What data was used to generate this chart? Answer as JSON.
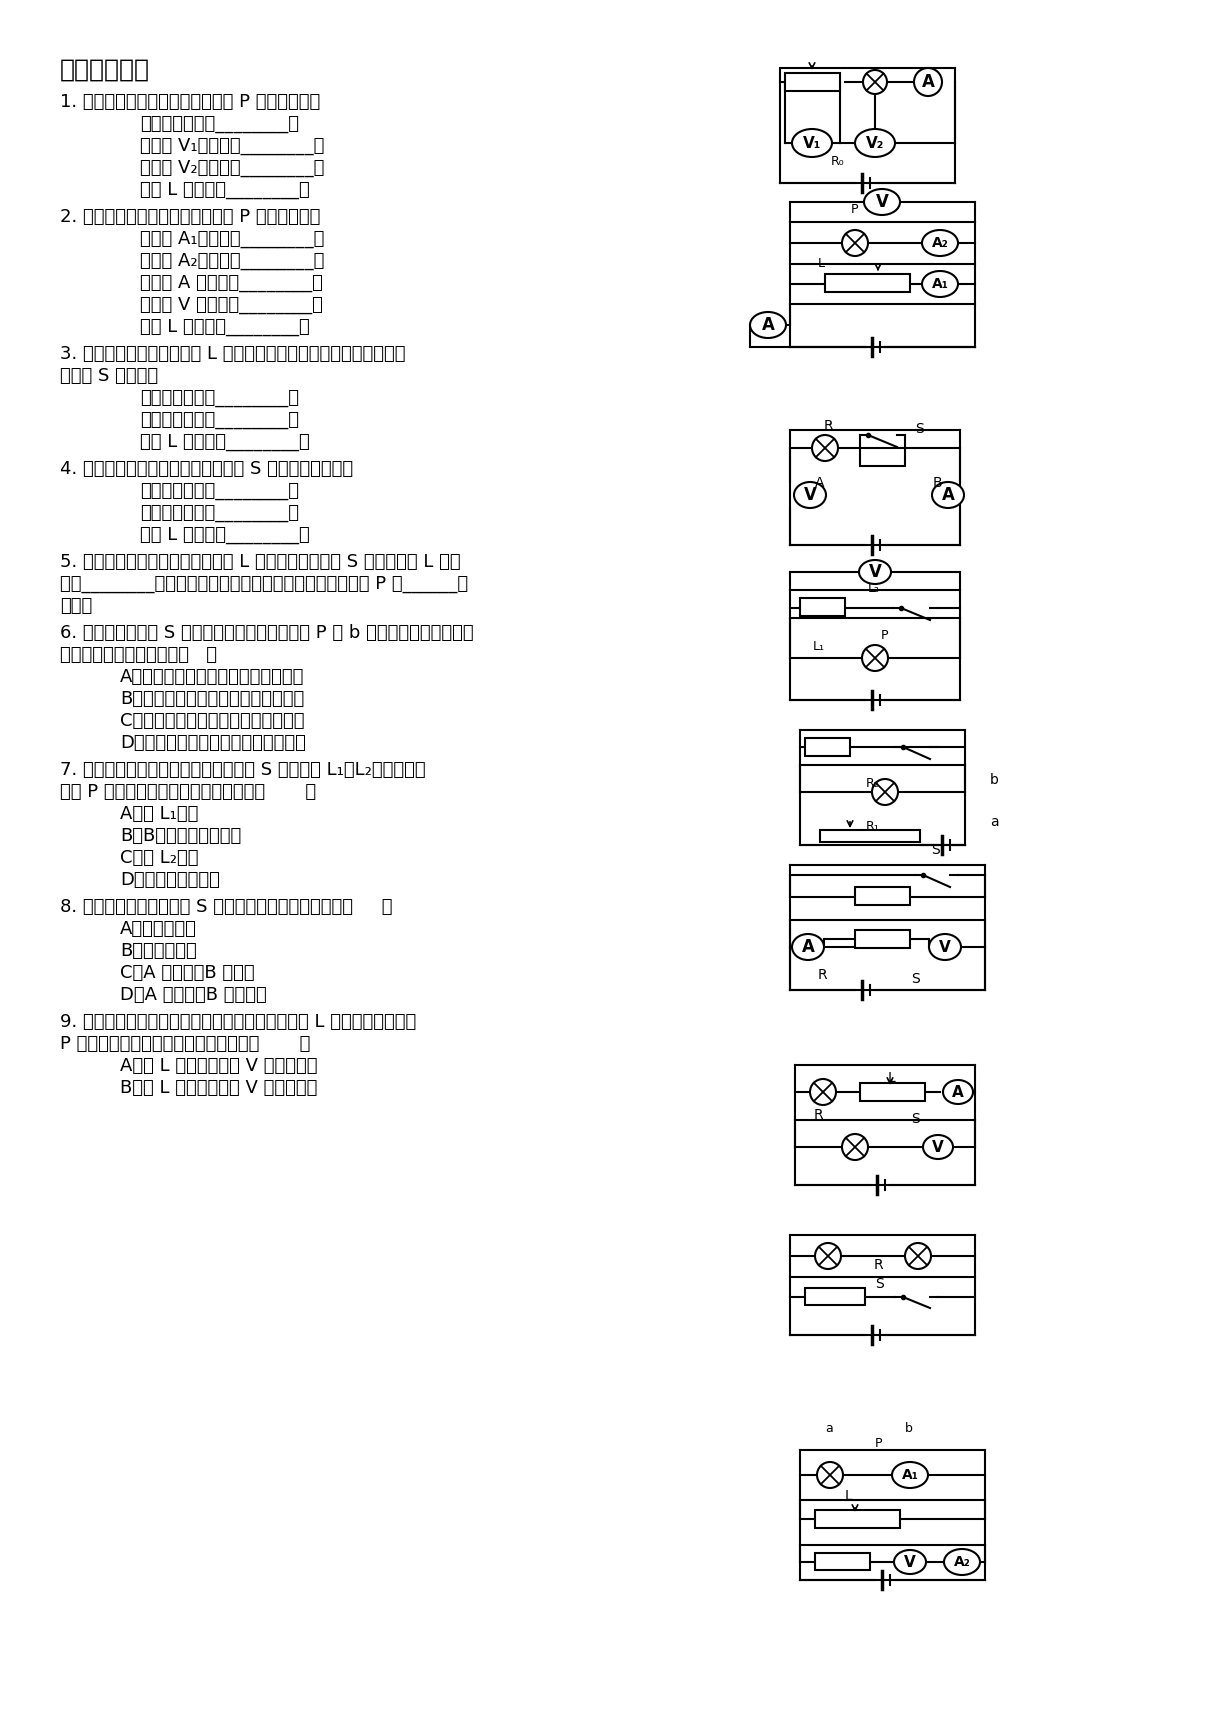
{
  "title": "电路动态分析",
  "background": "#ffffff",
  "questions": [
    {
      "main": "1. 如图所示，当滑动变阻器的滑片 P 向左移动时，",
      "items": [
        "电流表的示数将________；",
        "电压表 V₁的示数将________；",
        "电压表 V₂的示数将________；",
        "灯泡 L 的亮度将________。"
      ]
    },
    {
      "main": "2. 如图所示，当滑动变阻器的滑片 P 向右移动时，",
      "items": [
        "电流表 A₁的示数将________；",
        "电流表 A₂的示数将________；",
        "电流表 A 的示数将________；",
        "电压表 V 的示数将________；",
        "灯泡 L 的亮度将________。"
      ]
    },
    {
      "main": "3. 如图所示，开关闭合，灯 L 正常发光，电压表、电流表均有示数，",
      "main2": "当开关 S 断开时，",
      "items": [
        "电流表的示数将________；",
        "电压表的示数将________；",
        "灯泡 L 的亮度将________。"
      ]
    },
    {
      "main": "4. 如图所示，电源电压不变，当开关 S 由闭合到断开时，",
      "items": [
        "电流表的示数将________；",
        "电压表的示数将________；",
        "灯泡 L 的亮度将________。"
      ]
    },
    {
      "lines": [
        "5. 如图所示，电源电压不变，电灯 L 正常发光，当开关 S 闭合时，灯 L 的亮",
        "度将________，若使灯继续正常发光，则应将变阻器的滑片 P 向______端",
        "移动。"
      ]
    },
    {
      "lines": [
        "6. 如图所示，开关 S 闭合后，滑动变阻器的滑片 P 向 b 端滑动，则电流表和电",
        "压表的示数变化正确的是（   ）"
      ],
      "options": [
        "A、电流表示数变小，电压表示数变大",
        "B、电流表示数变大，电压表示数变小",
        "C、电流表示数变大，电压表示数变大",
        "D、电流表示数变小，电压表示数变小"
      ]
    },
    {
      "lines": [
        "7. 如图所示电路，电源电压不变，开关 S 闭合后灯 L₁、L₂均发光，当",
        "滑片 P 向右滑动时，下列叙述正确的有（       ）"
      ],
      "options": [
        "A、灯 L₁变亮",
        "B、B、电压表示数变小",
        "C、灯 L₂变亮",
        "D、电流表示数变小"
      ]
    },
    {
      "main": "8. 如图所示电路中，开关 S 闭合时，下列判断正确的是（     ）",
      "options": [
        "A、两灯都变暗",
        "B、两灯都变亮",
        "C、A 灯变暗，B 灯变亮",
        "D、A 灯变亮，B 灯变亮暗"
      ]
    },
    {
      "lines": [
        "9. 如图所示，电源电压保持不变，闭合开关后，灯 L 能够发光。当滑片",
        "P 向右滑动过程中，下列判断正确的是（       ）"
      ],
      "options": [
        "A、灯 L 变亮，电压表 V 的示数变大",
        "B、灯 L 变暗，电压表 V 的示数变小"
      ]
    }
  ]
}
